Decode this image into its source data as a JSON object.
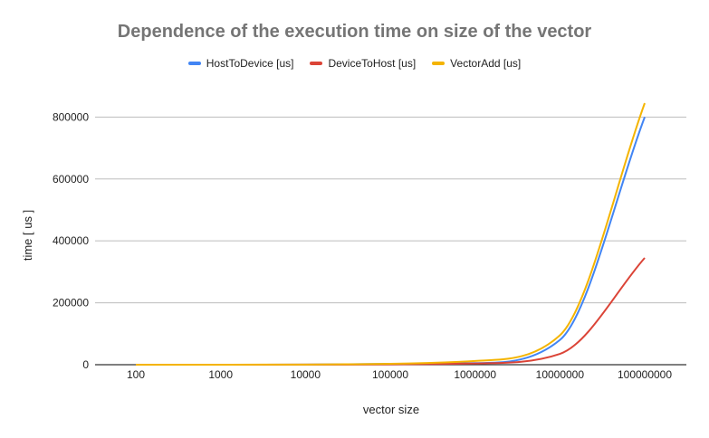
{
  "chart_data": {
    "type": "line",
    "title": "Dependence of the execution time on size of the vector",
    "xlabel": "vector size",
    "ylabel": "time [ us ]",
    "x_scale": "log",
    "categories": [
      "100",
      "1000",
      "10000",
      "100000",
      "1000000",
      "10000000",
      "100000000"
    ],
    "x": [
      100,
      1000,
      10000,
      100000,
      1000000,
      10000000,
      100000000
    ],
    "y_ticks": [
      "0",
      "200000",
      "400000",
      "600000",
      "800000"
    ],
    "ylim": [
      0,
      880000
    ],
    "legend_position": "top",
    "grid": true,
    "series": [
      {
        "name": "HostToDevice [us]",
        "color": "#4285f4",
        "values": [
          15,
          40,
          300,
          2500,
          5000,
          80000,
          800000
        ]
      },
      {
        "name": "DeviceToHost [us]",
        "color": "#db4437",
        "values": [
          10,
          30,
          200,
          1000,
          4000,
          35000,
          345000
        ]
      },
      {
        "name": "VectorAdd [us]",
        "color": "#f4b400",
        "values": [
          20,
          100,
          500,
          3000,
          12000,
          95000,
          845000
        ]
      }
    ]
  }
}
